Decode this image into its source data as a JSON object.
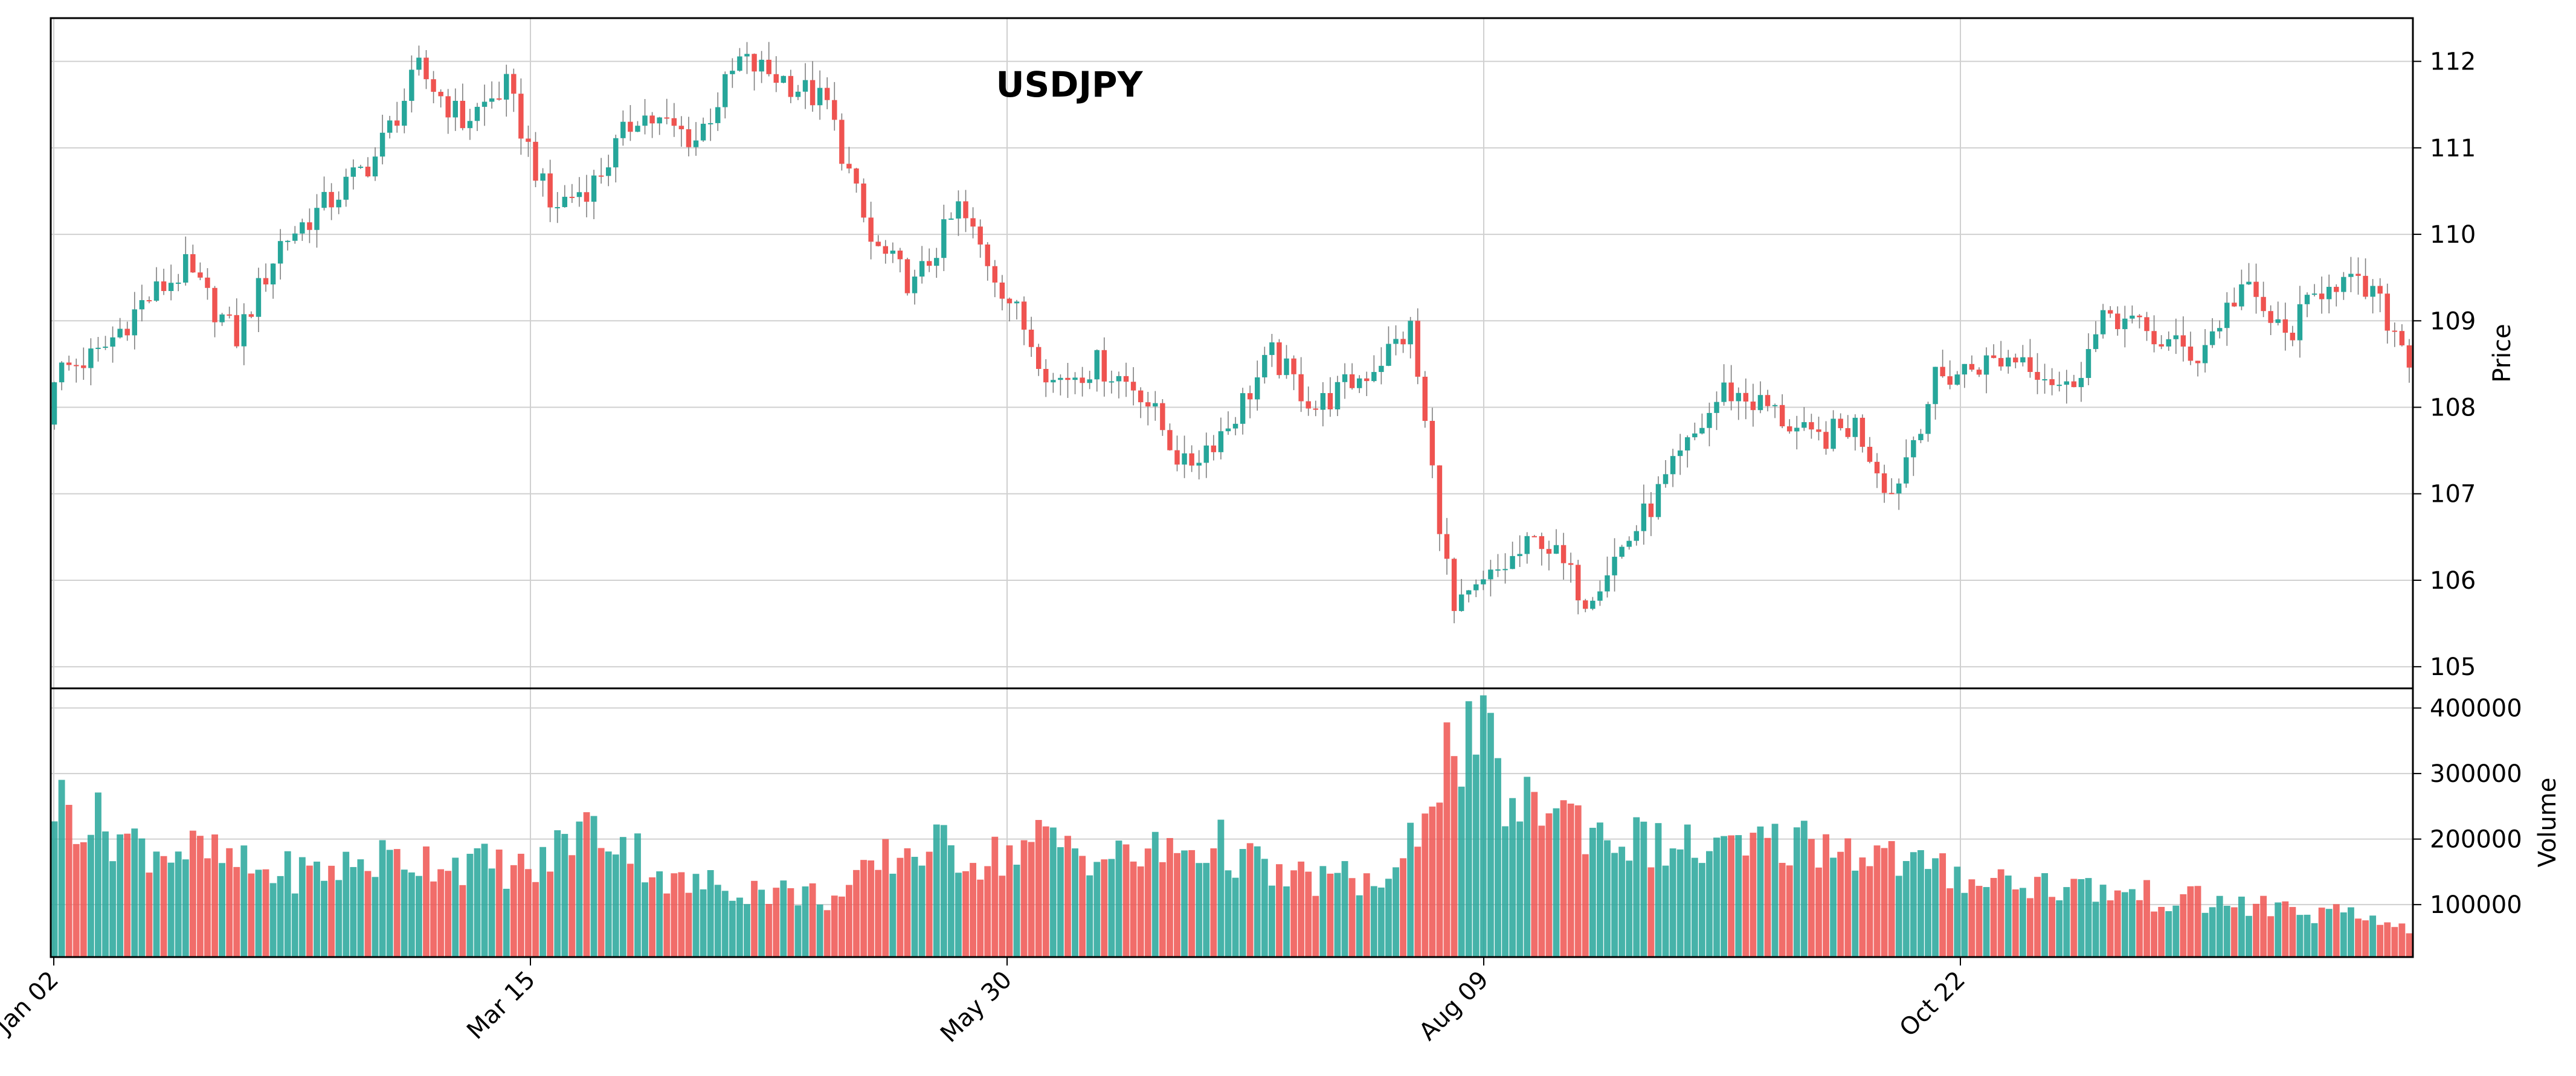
{
  "chart_data": {
    "type": "candlestick",
    "title": "USDJPY",
    "price_axis_label": "Price",
    "volume_axis_label": "Volume",
    "price_range": [
      104.75,
      112.5
    ],
    "volume_range": [
      20000,
      430000
    ],
    "price_ticks": [
      "105",
      "106",
      "107",
      "108",
      "109",
      "110",
      "111",
      "112"
    ],
    "volume_ticks": [
      "100000",
      "200000",
      "300000",
      "400000"
    ],
    "x_tick_labels": [
      "Jan 02",
      "Mar 15",
      "May 30",
      "Aug 09",
      "Oct 22"
    ],
    "grid": true,
    "colors": {
      "up": "#26a69a",
      "down": "#ef5350",
      "wick": "#7f7f7f",
      "grid": "#d0d0d0"
    },
    "anchor_closes": [
      [
        0,
        108.4
      ],
      [
        6,
        108.6
      ],
      [
        12,
        109.2
      ],
      [
        18,
        109.6
      ],
      [
        25,
        108.8
      ],
      [
        31,
        109.9
      ],
      [
        38,
        110.4
      ],
      [
        44,
        110.9
      ],
      [
        50,
        111.9
      ],
      [
        56,
        111.3
      ],
      [
        62,
        111.7
      ],
      [
        68,
        110.3
      ],
      [
        74,
        110.6
      ],
      [
        80,
        111.4
      ],
      [
        88,
        111.1
      ],
      [
        94,
        112.0
      ],
      [
        100,
        111.8
      ],
      [
        106,
        111.5
      ],
      [
        112,
        109.9
      ],
      [
        118,
        109.4
      ],
      [
        124,
        110.3
      ],
      [
        130,
        109.4
      ],
      [
        137,
        108.3
      ],
      [
        143,
        108.5
      ],
      [
        149,
        108.2
      ],
      [
        155,
        107.3
      ],
      [
        161,
        107.8
      ],
      [
        167,
        108.6
      ],
      [
        173,
        108.0
      ],
      [
        180,
        108.4
      ],
      [
        186,
        108.9
      ],
      [
        192,
        105.6
      ],
      [
        198,
        106.1
      ],
      [
        204,
        106.5
      ],
      [
        210,
        105.8
      ],
      [
        217,
        106.6
      ],
      [
        223,
        107.4
      ],
      [
        229,
        108.2
      ],
      [
        235,
        108.0
      ],
      [
        241,
        107.6
      ],
      [
        247,
        107.8
      ],
      [
        252,
        107.0
      ],
      [
        258,
        108.3
      ],
      [
        264,
        108.5
      ],
      [
        270,
        108.6
      ],
      [
        276,
        108.2
      ],
      [
        282,
        109.1
      ],
      [
        288,
        108.8
      ],
      [
        294,
        108.6
      ],
      [
        300,
        109.4
      ],
      [
        306,
        108.8
      ],
      [
        312,
        109.5
      ],
      [
        318,
        109.3
      ],
      [
        323,
        108.6
      ]
    ],
    "anchor_volumes": [
      [
        0,
        260000
      ],
      [
        5,
        230000
      ],
      [
        12,
        190000
      ],
      [
        20,
        180000
      ],
      [
        28,
        150000
      ],
      [
        36,
        150000
      ],
      [
        45,
        170000
      ],
      [
        52,
        170000
      ],
      [
        60,
        160000
      ],
      [
        66,
        150000
      ],
      [
        72,
        220000
      ],
      [
        78,
        200000
      ],
      [
        85,
        130000
      ],
      [
        92,
        130000
      ],
      [
        100,
        120000
      ],
      [
        108,
        110000
      ],
      [
        114,
        170000
      ],
      [
        120,
        190000
      ],
      [
        128,
        170000
      ],
      [
        136,
        200000
      ],
      [
        145,
        170000
      ],
      [
        152,
        180000
      ],
      [
        160,
        190000
      ],
      [
        168,
        140000
      ],
      [
        176,
        140000
      ],
      [
        184,
        130000
      ],
      [
        190,
        320000
      ],
      [
        196,
        350000
      ],
      [
        200,
        240000
      ],
      [
        205,
        260000
      ],
      [
        212,
        210000
      ],
      [
        220,
        190000
      ],
      [
        230,
        180000
      ],
      [
        240,
        200000
      ],
      [
        250,
        180000
      ],
      [
        258,
        150000
      ],
      [
        266,
        140000
      ],
      [
        274,
        130000
      ],
      [
        282,
        120000
      ],
      [
        290,
        110000
      ],
      [
        300,
        100000
      ],
      [
        308,
        90000
      ],
      [
        316,
        80000
      ],
      [
        323,
        70000
      ]
    ]
  }
}
